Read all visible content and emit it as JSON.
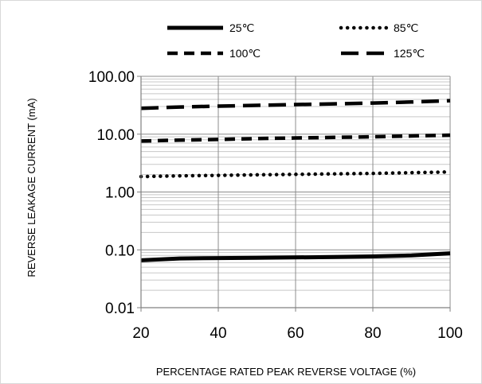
{
  "chart_data": {
    "type": "line",
    "title": "",
    "xlabel": "PERCENTAGE RATED PEAK REVERSE VOLTAGE (%)",
    "ylabel": "REVERSE LEAKAGE CURRENT (mA)",
    "xlim": [
      20,
      100
    ],
    "ylim": [
      0.01,
      100
    ],
    "yscale": "log",
    "grid": true,
    "legend_position": "top",
    "x_ticks": [
      20,
      40,
      60,
      80,
      100
    ],
    "x_tick_labels": [
      "20",
      "40",
      "60",
      "80",
      "100"
    ],
    "y_ticks": [
      0.01,
      0.1,
      1,
      10,
      100
    ],
    "y_tick_labels": [
      "0.01",
      "0.10",
      "1.00",
      "10.00",
      "100.00"
    ],
    "series": [
      {
        "name": "25℃",
        "color": "#000000",
        "style": "solid",
        "x": [
          20,
          30,
          40,
          50,
          60,
          70,
          80,
          90,
          100
        ],
        "y": [
          0.066,
          0.071,
          0.072,
          0.073,
          0.074,
          0.075,
          0.077,
          0.08,
          0.087
        ]
      },
      {
        "name": "85℃",
        "color": "#000000",
        "style": "dotted",
        "x": [
          20,
          30,
          40,
          50,
          60,
          70,
          80,
          90,
          100
        ],
        "y": [
          1.85,
          1.9,
          1.94,
          1.98,
          2.02,
          2.06,
          2.1,
          2.16,
          2.22
        ]
      },
      {
        "name": "100℃",
        "color": "#000000",
        "style": "dashed",
        "x": [
          20,
          30,
          40,
          50,
          60,
          70,
          80,
          90,
          100
        ],
        "y": [
          7.6,
          7.9,
          8.1,
          8.4,
          8.6,
          8.8,
          9.0,
          9.3,
          9.6
        ]
      },
      {
        "name": "125℃",
        "color": "#000000",
        "style": "long-dashed",
        "x": [
          20,
          30,
          40,
          50,
          60,
          70,
          80,
          90,
          100
        ],
        "y": [
          28.0,
          29.5,
          30.5,
          31.5,
          32.5,
          33.5,
          34.5,
          36.0,
          38.0
        ]
      }
    ]
  }
}
